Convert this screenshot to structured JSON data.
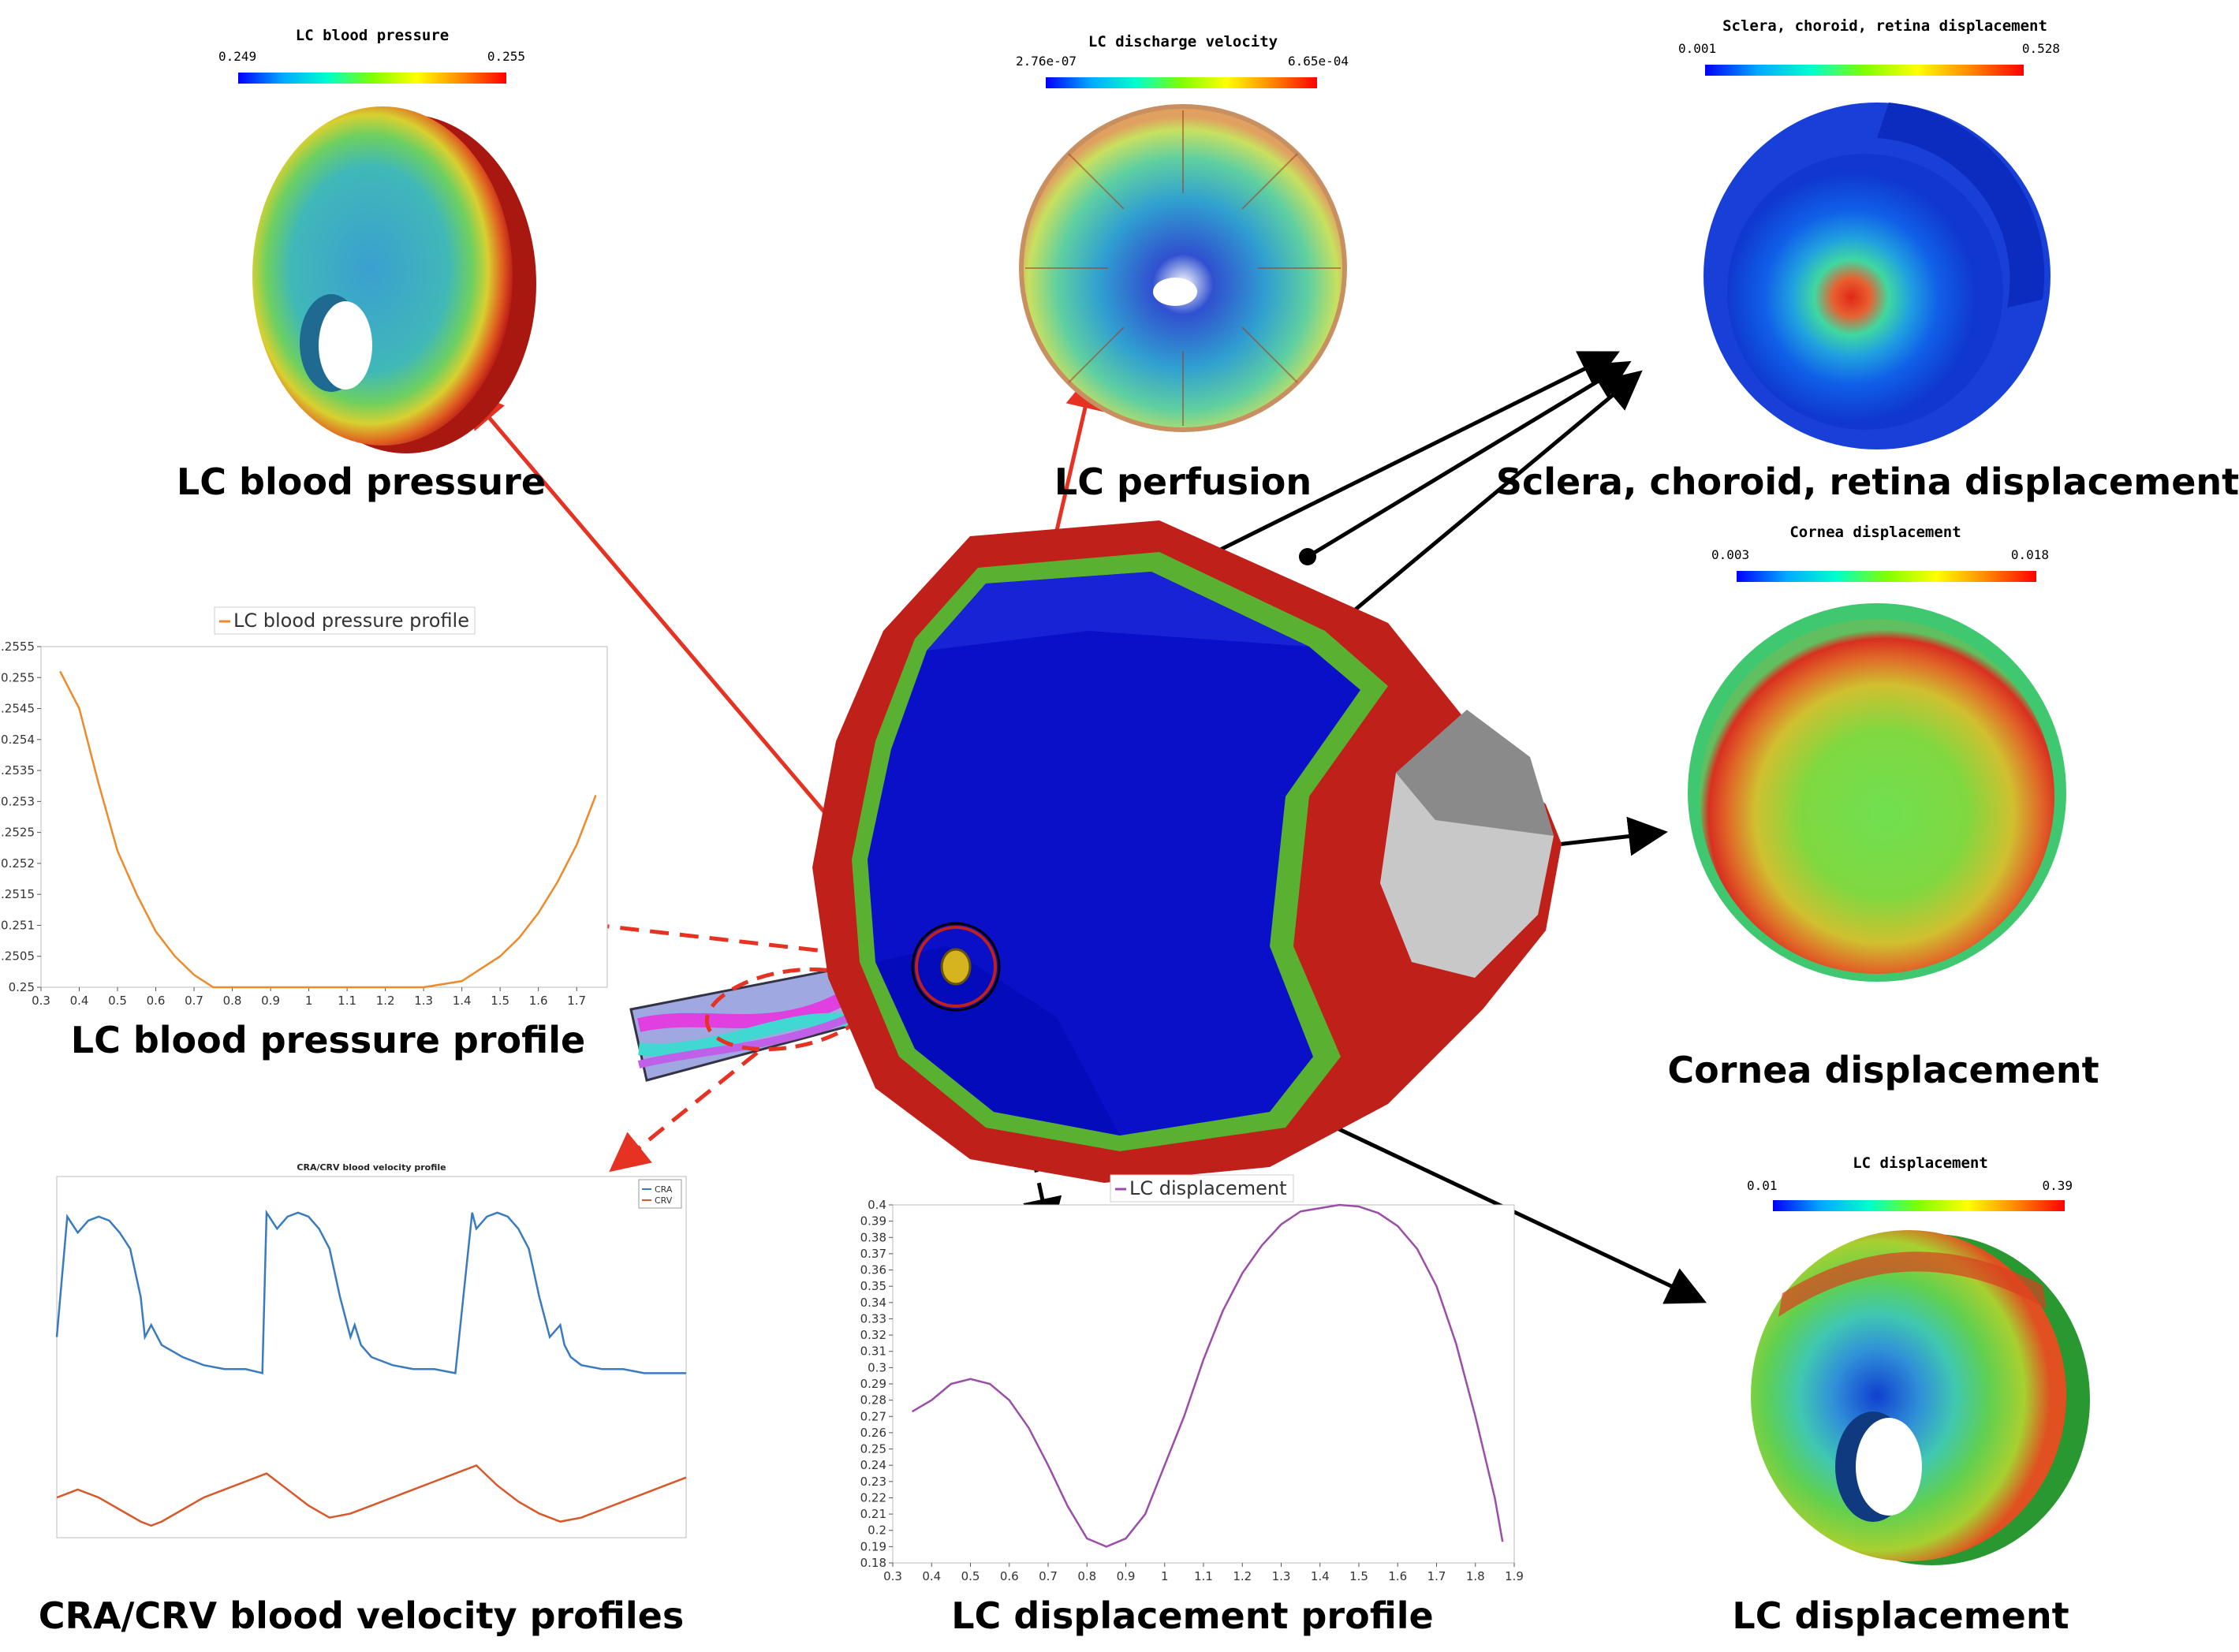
{
  "colors": {
    "red_arrow": "#e53222",
    "black_arrow": "#000000",
    "pressure_line": "#ee8a2a",
    "cra": "#3a7bc0",
    "crv": "#d9582a",
    "lc_disp_line": "#9a4ea8",
    "sclera_red": "#c0201a",
    "retina_green": "#5ab030",
    "choroid_blue": "#0a10c8",
    "cornea_grey": "#c8c8c8"
  },
  "panels": {
    "lc_pressure": {
      "cb_title": "LC blood pressure",
      "cb_min": "0.249",
      "cb_max": "0.255",
      "caption": "LC blood pressure"
    },
    "lc_perfusion": {
      "cb_title": "LC discharge velocity",
      "cb_min": "2.76e-07",
      "cb_max": "6.65e-04",
      "caption": "LC perfusion"
    },
    "sclera": {
      "cb_title": "Sclera, choroid, retina displacement",
      "cb_min": "0.001",
      "cb_max": "0.528",
      "caption": "Sclera, choroid, retina displacement"
    },
    "cornea": {
      "cb_title": "Cornea displacement",
      "cb_min": "0.003",
      "cb_max": "0.018",
      "caption": "Cornea displacement"
    },
    "lc_disp": {
      "cb_title": "LC displacement",
      "cb_min": "0.01",
      "cb_max": "0.39",
      "caption": "LC displacement"
    },
    "pressure_profile": {
      "caption": "LC blood pressure profile"
    },
    "cra_crv": {
      "caption": "CRA/CRV blood velocity profiles"
    },
    "disp_profile": {
      "caption": "LC displacement profile"
    }
  },
  "chart_data": [
    {
      "type": "line",
      "legend": "LC blood pressure profile",
      "x": [
        0.35,
        0.4,
        0.45,
        0.5,
        0.55,
        0.6,
        0.65,
        0.7,
        0.75,
        0.8,
        0.85,
        0.9,
        1.0,
        1.1,
        1.2,
        1.3,
        1.4,
        1.45,
        1.5,
        1.55,
        1.6,
        1.65,
        1.7,
        1.75
      ],
      "y": [
        0.2551,
        0.2545,
        0.2533,
        0.2522,
        0.2515,
        0.2509,
        0.2505,
        0.2502,
        0.25,
        0.25,
        0.25,
        0.25,
        0.25,
        0.25,
        0.25,
        0.25,
        0.2501,
        0.2503,
        0.2505,
        0.2508,
        0.2512,
        0.2517,
        0.2523,
        0.2531
      ],
      "xlim": [
        0.3,
        1.78
      ],
      "ylim": [
        0.25,
        0.2555
      ],
      "xticks": [
        "0.3",
        "0.4",
        "0.5",
        "0.6",
        "0.7",
        "0.8",
        "0.9",
        "1",
        "1.1",
        "1.2",
        "1.3",
        "1.4",
        "1.5",
        "1.6",
        "1.7"
      ],
      "yticks": [
        "0.25",
        "0.2505",
        "0.251",
        "0.2515",
        "0.252",
        "0.2525",
        "0.253",
        "0.2535",
        "0.254",
        "0.2545",
        "0.255",
        "0.2555"
      ]
    },
    {
      "type": "line",
      "title": "CRA/CRV blood velocity profile",
      "xlim": [
        0,
        3
      ],
      "ylim": [
        -0.5,
        4
      ],
      "series": [
        {
          "name": "CRA",
          "x": [
            0,
            0.05,
            0.1,
            0.15,
            0.2,
            0.25,
            0.3,
            0.35,
            0.4,
            0.42,
            0.45,
            0.5,
            0.6,
            0.7,
            0.8,
            0.9,
            0.98,
            1.0,
            1.05,
            1.1,
            1.15,
            1.2,
            1.25,
            1.3,
            1.35,
            1.4,
            1.42,
            1.45,
            1.5,
            1.6,
            1.7,
            1.8,
            1.9,
            1.98,
            2.0,
            2.05,
            2.1,
            2.15,
            2.2,
            2.25,
            2.3,
            2.35,
            2.4,
            2.42,
            2.45,
            2.5,
            2.6,
            2.7,
            2.8,
            2.9,
            3.0
          ],
          "y": [
            2.0,
            3.5,
            3.3,
            3.45,
            3.5,
            3.45,
            3.3,
            3.1,
            2.5,
            2.0,
            2.15,
            1.9,
            1.75,
            1.65,
            1.6,
            1.6,
            1.55,
            3.55,
            3.35,
            3.5,
            3.55,
            3.5,
            3.35,
            3.1,
            2.5,
            2.0,
            2.15,
            1.9,
            1.75,
            1.65,
            1.6,
            1.6,
            1.55,
            3.55,
            3.35,
            3.5,
            3.55,
            3.5,
            3.35,
            3.1,
            2.5,
            2.0,
            2.15,
            1.9,
            1.75,
            1.65,
            1.6,
            1.6,
            1.55,
            1.55,
            1.55
          ]
        },
        {
          "name": "CRV",
          "x": [
            0,
            0.05,
            0.1,
            0.2,
            0.3,
            0.4,
            0.45,
            0.5,
            0.6,
            0.7,
            0.8,
            0.9,
            1.0,
            1.1,
            1.2,
            1.3,
            1.4,
            1.5,
            1.6,
            1.7,
            1.8,
            1.9,
            2.0,
            2.1,
            2.2,
            2.3,
            2.4,
            2.5,
            2.6,
            2.7,
            2.8,
            2.9,
            3.0
          ],
          "y": [
            0.0,
            0.05,
            0.1,
            0.0,
            -0.15,
            -0.3,
            -0.35,
            -0.3,
            -0.15,
            0.0,
            0.1,
            0.2,
            0.3,
            0.1,
            -0.1,
            -0.25,
            -0.2,
            -0.1,
            0.0,
            0.1,
            0.2,
            0.3,
            0.4,
            0.15,
            -0.05,
            -0.2,
            -0.3,
            -0.25,
            -0.15,
            -0.05,
            0.05,
            0.15,
            0.25
          ]
        }
      ]
    },
    {
      "type": "line",
      "legend": "LC displacement",
      "x": [
        0.35,
        0.4,
        0.45,
        0.5,
        0.55,
        0.6,
        0.65,
        0.7,
        0.75,
        0.8,
        0.85,
        0.9,
        0.95,
        1.0,
        1.05,
        1.1,
        1.15,
        1.2,
        1.25,
        1.3,
        1.35,
        1.4,
        1.45,
        1.5,
        1.55,
        1.6,
        1.65,
        1.7,
        1.75,
        1.8,
        1.85,
        1.87
      ],
      "y": [
        0.273,
        0.28,
        0.29,
        0.293,
        0.29,
        0.28,
        0.263,
        0.24,
        0.215,
        0.195,
        0.19,
        0.195,
        0.21,
        0.24,
        0.27,
        0.305,
        0.335,
        0.358,
        0.375,
        0.388,
        0.396,
        0.398,
        0.4,
        0.399,
        0.395,
        0.387,
        0.373,
        0.35,
        0.315,
        0.27,
        0.22,
        0.193
      ],
      "xlim": [
        0.3,
        1.9
      ],
      "ylim": [
        0.18,
        0.4
      ],
      "xticks": [
        "0.3",
        "0.4",
        "0.5",
        "0.6",
        "0.7",
        "0.8",
        "0.9",
        "1",
        "1.1",
        "1.2",
        "1.3",
        "1.4",
        "1.5",
        "1.6",
        "1.7",
        "1.8",
        "1.9"
      ],
      "yticks": [
        "0.18",
        "0.19",
        "0.2",
        "0.21",
        "0.22",
        "0.23",
        "0.24",
        "0.25",
        "0.26",
        "0.27",
        "0.28",
        "0.29",
        "0.3",
        "0.31",
        "0.32",
        "0.33",
        "0.34",
        "0.35",
        "0.36",
        "0.37",
        "0.38",
        "0.39",
        "0.4"
      ]
    }
  ]
}
